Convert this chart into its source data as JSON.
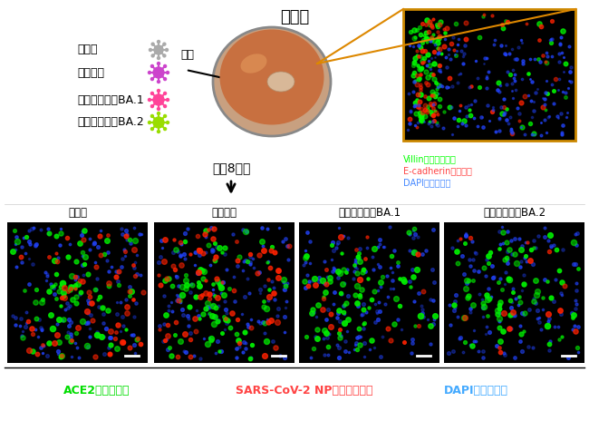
{
  "title": "ミニ腸",
  "virus_labels": [
    "武漢株",
    "デルタ株",
    "オミクロン株BA.1",
    "オミクロン株BA.2"
  ],
  "virus_colors": [
    "#aaaaaa",
    "#cc44cc",
    "#ff4499",
    "#99dd00"
  ],
  "infection_label": "感染",
  "day_label": "感染8日後",
  "bottom_panel_labels": [
    "武漢株",
    "デルタ株",
    "オミクロン株BA.1",
    "オミクロン株BA.2"
  ],
  "legend_top": [
    {
      "text": "Villin（吸収上皮）",
      "color": "#00ff00"
    },
    {
      "text": "E-cadherin（上皮）",
      "color": "#ff4444"
    },
    {
      "text": "DAPI（細胞核）",
      "color": "#4488ff"
    }
  ],
  "legend_bottom": [
    {
      "text": "ACE2（受容体）",
      "color": "#00dd00"
    },
    {
      "text": "SARS-CoV-2 NP（感染細胞）",
      "color": "#ff4444"
    },
    {
      "text": "DAPI（細胞核）",
      "color": "#44aaff"
    }
  ],
  "background_color": "#ffffff"
}
